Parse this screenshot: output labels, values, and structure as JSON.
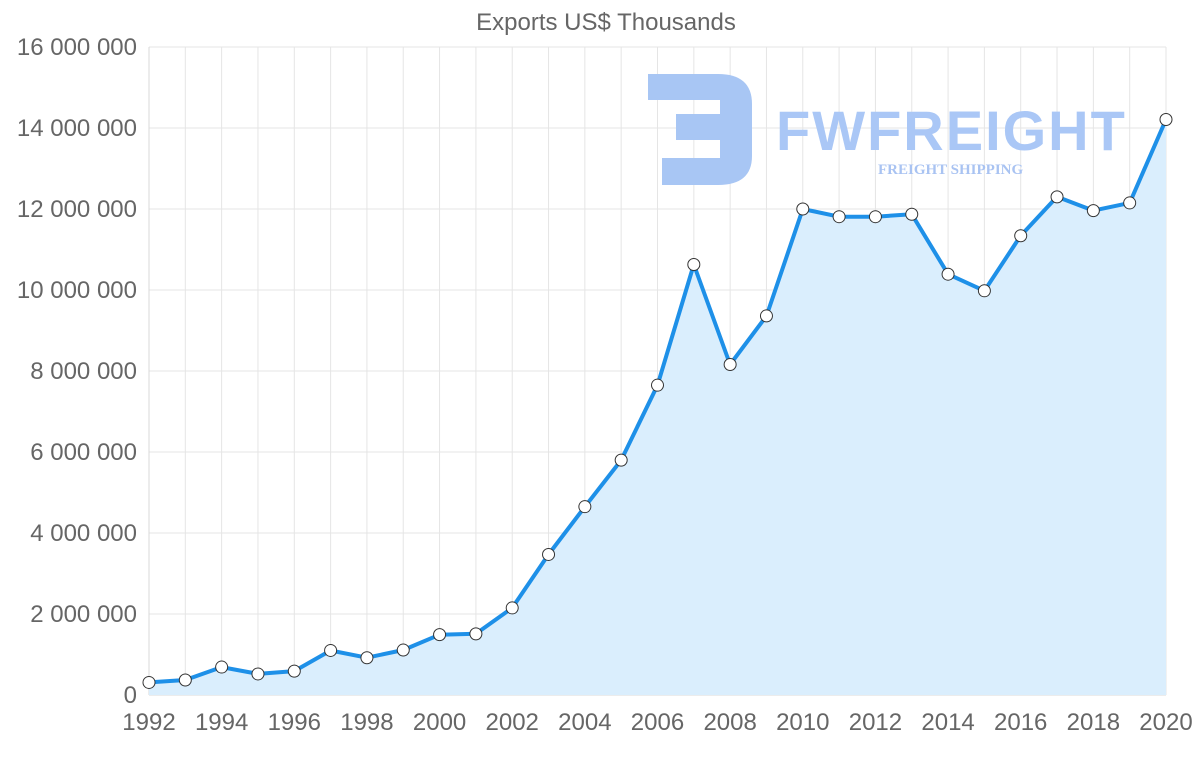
{
  "chart_data": {
    "type": "area",
    "title": "Exports US$ Thousands",
    "xlabel": "",
    "ylabel": "",
    "xlim": [
      1992,
      2020
    ],
    "ylim": [
      0,
      16000000
    ],
    "grid": true,
    "x_tick_labels": [
      "1992",
      "1994",
      "1996",
      "1998",
      "2000",
      "2002",
      "2004",
      "2006",
      "2008",
      "2010",
      "2012",
      "2014",
      "2016",
      "2018",
      "2020"
    ],
    "y_tick_labels": [
      "0",
      "2 000 000",
      "4 000 000",
      "6 000 000",
      "8 000 000",
      "10 000 000",
      "12 000 000",
      "14 000 000",
      "16 000 000"
    ],
    "x": [
      1992,
      1993,
      1994,
      1995,
      1996,
      1997,
      1998,
      1999,
      2000,
      2001,
      2002,
      2003,
      2004,
      2005,
      2006,
      2007,
      2008,
      2009,
      2010,
      2011,
      2012,
      2013,
      2014,
      2015,
      2016,
      2017,
      2018,
      2019,
      2020
    ],
    "series": [
      {
        "name": "Exports US$ Thousands",
        "values": [
          310000,
          370000,
          690000,
          520000,
          590000,
          1100000,
          920000,
          1110000,
          1490000,
          1510000,
          2150000,
          3470000,
          4650000,
          5800000,
          7650000,
          10630000,
          8160000,
          9360000,
          12000000,
          11810000,
          11810000,
          11870000,
          10390000,
          9980000,
          11340000,
          12300000,
          11960000,
          12150000,
          14210000
        ]
      }
    ],
    "colors": {
      "line": "#1e90e8",
      "area": "#daeefd"
    }
  },
  "watermark": {
    "brand": "FWFREIGHT",
    "tagline": "FREIGHT SHIPPING"
  }
}
